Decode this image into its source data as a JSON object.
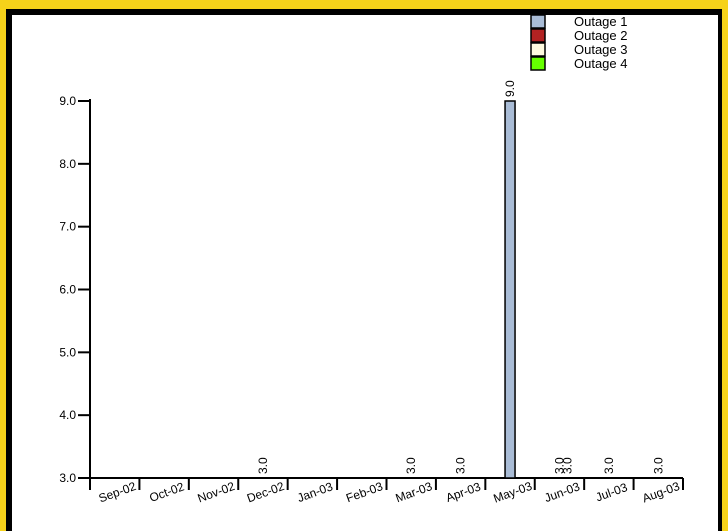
{
  "colors": {
    "frame": "#f6d21a",
    "border": "#000000",
    "background": "#ffffff"
  },
  "chart_data": {
    "type": "bar",
    "categories": [
      "Sep-02",
      "Oct-02",
      "Nov-02",
      "Dec-02",
      "Jan-03",
      "Feb-03",
      "Mar-03",
      "Apr-03",
      "May-03",
      "Jun-03",
      "Jul-03",
      "Aug-03"
    ],
    "series": [
      {
        "name": "Outage 1",
        "color": "#a9bcd6",
        "values": [
          null,
          null,
          null,
          null,
          null,
          null,
          null,
          null,
          9.0,
          null,
          null,
          null
        ]
      },
      {
        "name": "Outage 2",
        "color": "#b22222",
        "values": [
          null,
          null,
          null,
          null,
          null,
          null,
          null,
          null,
          null,
          null,
          null,
          null
        ]
      },
      {
        "name": "Outage 3",
        "color": "#fffbe0",
        "values": [
          null,
          null,
          null,
          null,
          null,
          null,
          null,
          null,
          null,
          null,
          null,
          null
        ]
      },
      {
        "name": "Outage 4",
        "color": "#66ff00",
        "values": [
          null,
          null,
          null,
          null,
          null,
          null,
          null,
          null,
          null,
          null,
          null,
          null
        ]
      }
    ],
    "data_labels": [
      {
        "category": "Dec-02",
        "label": "3.0"
      },
      {
        "category": "Mar-03",
        "label": "3.0"
      },
      {
        "category": "Apr-03",
        "label": "3.0"
      },
      {
        "category": "May-03",
        "label": "9.0"
      },
      {
        "category": "Jun-03",
        "label": "3.0"
      },
      {
        "category": "Jun-03",
        "label": "3.0"
      },
      {
        "category": "Jul-03",
        "label": "3.0"
      },
      {
        "category": "Aug-03",
        "label": "3.0"
      }
    ],
    "y_ticks": [
      "3.0",
      "4.0",
      "5.0",
      "6.0",
      "7.0",
      "8.0",
      "9.0"
    ],
    "ylim": [
      3,
      9
    ],
    "title": "",
    "xlabel": "",
    "ylabel": "",
    "grid": false,
    "legend_position": "top-right"
  }
}
